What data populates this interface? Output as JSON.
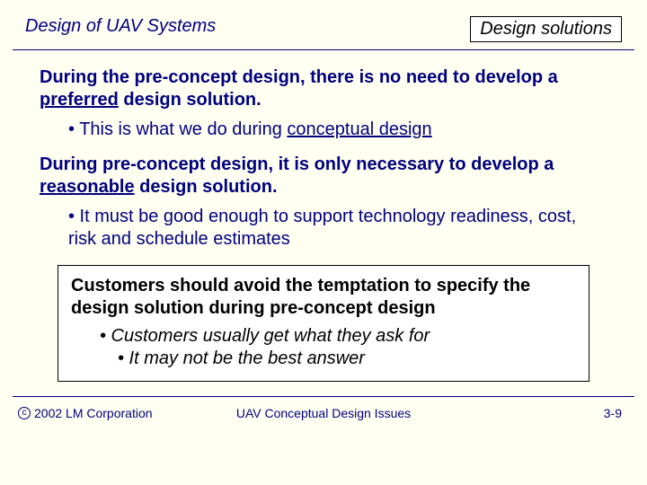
{
  "header": {
    "left": "Design of UAV Systems",
    "right": "Design solutions"
  },
  "body": {
    "p1a": "During the pre-concept design, there is no need to develop a ",
    "p1u": "preferred",
    "p1b": " design solution.",
    "b1a": "• This is what we do during ",
    "b1u": "conceptual design",
    "p2a": "During pre-concept design, it is only necessary to develop a ",
    "p2u": "reasonable",
    "p2b": " design solution.",
    "b2": "• It must be good enough to support technology readiness, cost, risk and schedule estimates"
  },
  "box": {
    "p1": "Customers should avoid the temptation to specify the design solution during pre-concept design",
    "b1": "• Customers usually get what they ask for",
    "b2": "• It may not be the best answer"
  },
  "footer": {
    "copyright_symbol": "c",
    "copyright": "2002 LM Corporation",
    "center": "UAV Conceptual Design Issues",
    "page": "3-9"
  }
}
